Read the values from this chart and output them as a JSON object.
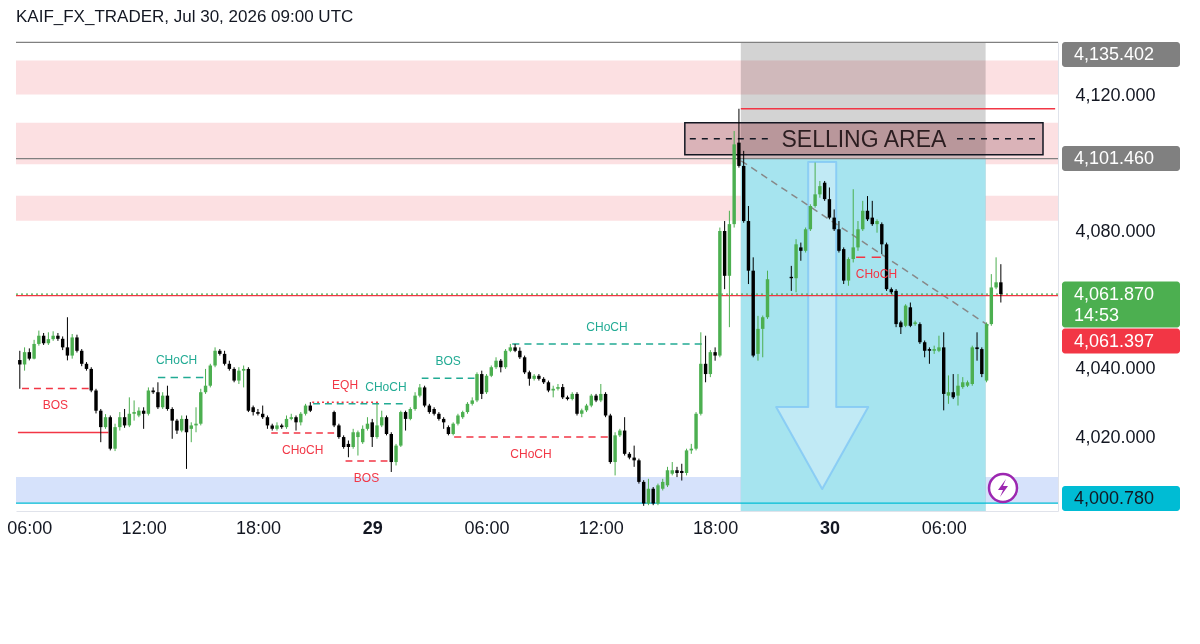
{
  "chart_data": {
    "type": "candlestick",
    "title": "KAIF_FX_TRADER, Jul 30, 2026 09:00 UTC",
    "xlim": [
      "2026-07-28T05:18",
      "2026-07-30T12:00"
    ],
    "ylim": [
      3998.5,
      4135.5
    ],
    "xticks": [
      {
        "value": "2026-07-28T06:00",
        "label": "06:00"
      },
      {
        "value": "2026-07-28T12:00",
        "label": "12:00"
      },
      {
        "value": "2026-07-28T18:00",
        "label": "18:00"
      },
      {
        "value": "2026-07-29",
        "label": "29"
      },
      {
        "value": "2026-07-29T06:00",
        "label": "06:00"
      },
      {
        "value": "2026-07-29T12:00",
        "label": "12:00"
      },
      {
        "value": "2026-07-29T18:00",
        "label": "18:00"
      },
      {
        "value": "2026-07-30",
        "label": "30"
      },
      {
        "value": "2026-07-30T06:00",
        "label": "06:00"
      }
    ],
    "yticks": [
      {
        "value": 4020,
        "label": "4,020.000"
      },
      {
        "value": 4040,
        "label": "4,040.000"
      },
      {
        "value": 4080,
        "label": "4,080.000"
      },
      {
        "value": 4120,
        "label": "4,120.000"
      }
    ],
    "x": [
      "2026-07-28T05:30",
      "2026-07-28T05:45",
      "2026-07-28T06:00",
      "2026-07-28T06:15",
      "2026-07-28T06:30",
      "2026-07-28T06:45",
      "2026-07-28T07:00",
      "2026-07-28T07:15",
      "2026-07-28T07:30",
      "2026-07-28T07:45",
      "2026-07-28T08:00",
      "2026-07-28T08:15",
      "2026-07-28T08:30",
      "2026-07-28T08:45",
      "2026-07-28T09:00",
      "2026-07-28T09:15",
      "2026-07-28T09:30",
      "2026-07-28T09:45",
      "2026-07-28T10:00",
      "2026-07-28T10:15",
      "2026-07-28T10:30",
      "2026-07-28T10:45",
      "2026-07-28T11:00",
      "2026-07-28T11:15",
      "2026-07-28T11:30",
      "2026-07-28T11:45",
      "2026-07-28T12:00",
      "2026-07-28T12:15",
      "2026-07-28T12:30",
      "2026-07-28T12:45",
      "2026-07-28T13:00",
      "2026-07-28T13:15",
      "2026-07-28T13:30",
      "2026-07-28T13:45",
      "2026-07-28T14:00",
      "2026-07-28T14:15",
      "2026-07-28T14:30",
      "2026-07-28T14:45",
      "2026-07-28T15:00",
      "2026-07-28T15:15",
      "2026-07-28T15:30",
      "2026-07-28T15:45",
      "2026-07-28T16:00",
      "2026-07-28T16:15",
      "2026-07-28T16:30",
      "2026-07-28T16:45",
      "2026-07-28T17:00",
      "2026-07-28T17:15",
      "2026-07-28T17:30",
      "2026-07-28T17:45",
      "2026-07-28T18:00",
      "2026-07-28T18:15",
      "2026-07-28T18:30",
      "2026-07-28T18:45",
      "2026-07-28T19:00",
      "2026-07-28T19:15",
      "2026-07-28T19:30",
      "2026-07-28T19:45",
      "2026-07-28T20:00",
      "2026-07-28T20:15",
      "2026-07-28T20:30",
      "2026-07-28T20:45",
      "2026-07-28T22:00",
      "2026-07-28T22:15",
      "2026-07-28T22:30",
      "2026-07-28T22:45",
      "2026-07-28T23:00",
      "2026-07-28T23:15",
      "2026-07-28T23:30",
      "2026-07-28T23:45",
      "2026-07-29T00:00",
      "2026-07-29T00:15",
      "2026-07-29T00:30",
      "2026-07-29T00:45",
      "2026-07-29T01:00",
      "2026-07-29T01:15",
      "2026-07-29T01:30",
      "2026-07-29T01:45",
      "2026-07-29T02:00",
      "2026-07-29T02:15",
      "2026-07-29T02:30",
      "2026-07-29T02:45",
      "2026-07-29T03:00",
      "2026-07-29T03:15",
      "2026-07-29T03:30",
      "2026-07-29T03:45",
      "2026-07-29T04:00",
      "2026-07-29T04:15",
      "2026-07-29T04:30",
      "2026-07-29T04:45",
      "2026-07-29T05:00",
      "2026-07-29T05:15",
      "2026-07-29T05:30",
      "2026-07-29T05:45",
      "2026-07-29T06:00",
      "2026-07-29T06:15",
      "2026-07-29T06:30",
      "2026-07-29T06:45",
      "2026-07-29T07:00",
      "2026-07-29T07:15",
      "2026-07-29T07:30",
      "2026-07-29T07:45",
      "2026-07-29T08:00",
      "2026-07-29T08:15",
      "2026-07-29T08:30",
      "2026-07-29T08:45",
      "2026-07-29T09:00",
      "2026-07-29T09:15",
      "2026-07-29T09:30",
      "2026-07-29T09:45",
      "2026-07-29T10:00",
      "2026-07-29T10:15",
      "2026-07-29T10:30",
      "2026-07-29T10:45",
      "2026-07-29T11:00",
      "2026-07-29T11:15",
      "2026-07-29T11:30",
      "2026-07-29T11:45",
      "2026-07-29T12:00",
      "2026-07-29T12:15",
      "2026-07-29T12:30",
      "2026-07-29T12:45",
      "2026-07-29T13:00",
      "2026-07-29T13:15",
      "2026-07-29T13:30",
      "2026-07-29T13:45",
      "2026-07-29T14:00",
      "2026-07-29T14:15",
      "2026-07-29T14:30",
      "2026-07-29T14:45",
      "2026-07-29T15:00",
      "2026-07-29T15:15",
      "2026-07-29T15:30",
      "2026-07-29T15:45",
      "2026-07-29T16:00",
      "2026-07-29T16:15",
      "2026-07-29T16:30",
      "2026-07-29T16:45",
      "2026-07-29T17:00",
      "2026-07-29T17:15",
      "2026-07-29T17:30",
      "2026-07-29T17:45",
      "2026-07-29T18:00",
      "2026-07-29T18:15",
      "2026-07-29T18:30",
      "2026-07-29T18:45",
      "2026-07-29T19:00",
      "2026-07-29T19:15",
      "2026-07-29T19:30",
      "2026-07-29T19:45",
      "2026-07-29T20:00",
      "2026-07-29T20:15",
      "2026-07-29T20:30",
      "2026-07-29T20:45",
      "2026-07-29T22:00",
      "2026-07-29T22:15",
      "2026-07-29T22:30",
      "2026-07-29T22:45",
      "2026-07-29T23:00",
      "2026-07-29T23:15",
      "2026-07-29T23:30",
      "2026-07-29T23:45",
      "2026-07-30T00:00",
      "2026-07-30T00:15",
      "2026-07-30T00:30",
      "2026-07-30T00:45",
      "2026-07-30T01:00",
      "2026-07-30T01:15",
      "2026-07-30T01:30",
      "2026-07-30T01:45",
      "2026-07-30T02:00",
      "2026-07-30T02:15",
      "2026-07-30T02:30",
      "2026-07-30T02:45",
      "2026-07-30T03:00",
      "2026-07-30T03:15",
      "2026-07-30T03:30",
      "2026-07-30T03:45",
      "2026-07-30T04:00",
      "2026-07-30T04:15",
      "2026-07-30T04:30",
      "2026-07-30T04:45",
      "2026-07-30T05:00",
      "2026-07-30T05:15",
      "2026-07-30T05:30",
      "2026-07-30T05:45",
      "2026-07-30T06:00",
      "2026-07-30T06:15",
      "2026-07-30T06:30",
      "2026-07-30T06:45",
      "2026-07-30T07:00",
      "2026-07-30T07:15",
      "2026-07-30T07:30",
      "2026-07-30T07:45",
      "2026-07-30T08:00",
      "2026-07-30T08:15",
      "2026-07-30T08:30",
      "2026-07-30T08:45",
      "2026-07-30T09:00"
    ],
    "ohlc": [
      [
        4042.6,
        4045.3,
        4034.2,
        4041.3
      ],
      [
        4041.3,
        4046.3,
        4039.5,
        4044.9
      ],
      [
        4044.9,
        4046.0,
        4042.5,
        4043.0
      ],
      [
        4043.0,
        4048.5,
        4042.8,
        4047.3
      ],
      [
        4047.3,
        4051.2,
        4046.8,
        4049.7
      ],
      [
        4049.7,
        4050.5,
        4047.0,
        4047.5
      ],
      [
        4047.5,
        4050.7,
        4047.0,
        4048.7
      ],
      [
        4048.7,
        4051.0,
        4048.2,
        4049.7
      ],
      [
        4049.7,
        4050.5,
        4048.2,
        4048.8
      ],
      [
        4048.8,
        4049.5,
        4045.5,
        4046.3
      ],
      [
        4046.3,
        4055.1,
        4042.5,
        4043.9
      ],
      [
        4043.9,
        4050.2,
        4043.0,
        4049.2
      ],
      [
        4049.2,
        4050.0,
        4044.8,
        4045.3
      ],
      [
        4045.3,
        4045.8,
        4040.8,
        4041.5
      ],
      [
        4041.5,
        4042.0,
        4039.5,
        4040.0
      ],
      [
        4040.0,
        4040.5,
        4033.2,
        4033.7
      ],
      [
        4033.7,
        4034.2,
        4027.0,
        4027.8
      ],
      [
        4027.8,
        4028.3,
        4018.6,
        4023.0
      ],
      [
        4023.0,
        4026.8,
        4022.5,
        4025.9
      ],
      [
        4025.9,
        4026.4,
        4016.2,
        4016.7
      ],
      [
        4016.7,
        4024.0,
        4016.0,
        4023.0
      ],
      [
        4023.0,
        4027.4,
        4022.0,
        4025.9
      ],
      [
        4025.9,
        4028.3,
        4022.8,
        4023.5
      ],
      [
        4023.5,
        4031.7,
        4023.0,
        4026.9
      ],
      [
        4026.9,
        4030.8,
        4024.9,
        4027.4
      ],
      [
        4026.4,
        4028.8,
        4025.9,
        4027.8
      ],
      [
        4027.8,
        4028.8,
        4022.5,
        4026.9
      ],
      [
        4026.9,
        4034.6,
        4026.4,
        4033.7
      ],
      [
        4033.7,
        4034.6,
        4032.7,
        4033.2
      ],
      [
        4033.2,
        4036.1,
        4028.3,
        4028.8
      ],
      [
        4028.8,
        4033.2,
        4028.3,
        4032.2
      ],
      [
        4032.2,
        4035.1,
        4027.8,
        4028.3
      ],
      [
        4028.3,
        4028.8,
        4019.6,
        4024.9
      ],
      [
        4024.9,
        4025.4,
        4021.0,
        4022.0
      ],
      [
        4022.0,
        4026.4,
        4021.5,
        4025.4
      ],
      [
        4025.4,
        4026.4,
        4010.8,
        4021.5
      ],
      [
        4022.5,
        4024.4,
        4018.6,
        4023.5
      ],
      [
        4023.5,
        4028.8,
        4021.5,
        4024.0
      ],
      [
        4024.0,
        4034.2,
        4023.5,
        4033.2
      ],
      [
        4033.2,
        4040.0,
        4032.7,
        4035.1
      ],
      [
        4035.1,
        4041.5,
        4034.6,
        4041.0
      ],
      [
        4041.0,
        4046.3,
        4040.5,
        4045.3
      ],
      [
        4045.3,
        4045.8,
        4043.9,
        4044.4
      ],
      [
        4044.4,
        4045.3,
        4041.0,
        4041.5
      ],
      [
        4041.5,
        4042.4,
        4039.5,
        4040.0
      ],
      [
        4040.0,
        4040.5,
        4036.1,
        4036.6
      ],
      [
        4036.6,
        4040.5,
        4035.6,
        4039.5
      ],
      [
        4039.5,
        4041.0,
        4034.6,
        4040.0
      ],
      [
        4040.0,
        4040.5,
        4027.4,
        4027.8
      ],
      [
        4028.8,
        4029.3,
        4026.4,
        4027.4
      ],
      [
        4027.4,
        4028.3,
        4026.4,
        4026.9
      ],
      [
        4026.9,
        4029.3,
        4025.4,
        4025.9
      ],
      [
        4025.9,
        4026.4,
        4022.5,
        4023.5
      ],
      [
        4023.5,
        4024.0,
        4022.0,
        4022.5
      ],
      [
        4022.5,
        4024.4,
        4022.0,
        4023.5
      ],
      [
        4023.5,
        4024.0,
        4022.5,
        4023.0
      ],
      [
        4023.0,
        4026.4,
        4022.5,
        4025.4
      ],
      [
        4025.4,
        4026.9,
        4025.0,
        4025.9
      ],
      [
        4025.9,
        4026.4,
        4022.0,
        4024.4
      ],
      [
        4024.4,
        4027.4,
        4023.5,
        4026.9
      ],
      [
        4026.9,
        4029.8,
        4026.4,
        4029.3
      ],
      [
        4029.3,
        4030.3,
        4027.4,
        4027.8
      ],
      [
        4027.4,
        4027.8,
        4023.0,
        4023.5
      ],
      [
        4023.5,
        4024.0,
        4019.6,
        4020.1
      ],
      [
        4020.1,
        4020.6,
        4016.7,
        4017.2
      ],
      [
        4018.1,
        4019.1,
        4014.2,
        4017.2
      ],
      [
        4017.2,
        4022.5,
        4016.7,
        4021.5
      ],
      [
        4020.1,
        4022.0,
        4014.7,
        4021.5
      ],
      [
        4018.6,
        4023.5,
        4018.1,
        4022.5
      ],
      [
        4022.5,
        4025.9,
        4022.0,
        4024.0
      ],
      [
        4024.4,
        4025.4,
        4017.2,
        4020.1
      ],
      [
        4020.1,
        4029.8,
        4019.6,
        4023.5
      ],
      [
        4023.5,
        4027.8,
        4023.0,
        4025.9
      ],
      [
        4025.9,
        4026.4,
        4020.6,
        4021.0
      ],
      [
        4021.0,
        4021.5,
        4009.9,
        4012.8
      ],
      [
        4012.8,
        4018.1,
        4011.8,
        4017.6
      ],
      [
        4017.6,
        4027.8,
        4017.2,
        4027.4
      ],
      [
        4027.4,
        4027.8,
        4022.0,
        4025.4
      ],
      [
        4025.4,
        4028.8,
        4025.0,
        4028.3
      ],
      [
        4028.3,
        4033.2,
        4027.8,
        4032.2
      ],
      [
        4032.2,
        4035.6,
        4031.7,
        4034.6
      ],
      [
        4034.6,
        4035.1,
        4028.8,
        4029.3
      ],
      [
        4029.3,
        4029.8,
        4026.9,
        4027.4
      ],
      [
        4028.3,
        4028.8,
        4026.4,
        4026.9
      ],
      [
        4026.9,
        4027.4,
        4024.9,
        4025.4
      ],
      [
        4025.4,
        4025.9,
        4022.5,
        4024.4
      ],
      [
        4023.0,
        4023.5,
        4020.6,
        4021.0
      ],
      [
        4021.0,
        4024.4,
        4020.6,
        4024.0
      ],
      [
        4024.0,
        4026.9,
        4023.5,
        4026.4
      ],
      [
        4025.9,
        4027.8,
        4025.4,
        4027.4
      ],
      [
        4027.4,
        4030.3,
        4026.9,
        4029.8
      ],
      [
        4029.8,
        4031.7,
        4029.3,
        4030.8
      ],
      [
        4030.8,
        4039.0,
        4030.3,
        4038.5
      ],
      [
        4038.5,
        4039.5,
        4031.2,
        4032.7
      ],
      [
        4033.2,
        4038.5,
        4032.7,
        4038.0
      ],
      [
        4038.0,
        4041.0,
        4037.6,
        4040.5
      ],
      [
        4040.5,
        4043.4,
        4040.0,
        4042.4
      ],
      [
        4042.4,
        4042.9,
        4039.0,
        4040.5
      ],
      [
        4040.5,
        4045.8,
        4040.0,
        4045.3
      ],
      [
        4045.3,
        4047.3,
        4044.9,
        4046.3
      ],
      [
        4046.3,
        4047.3,
        4044.9,
        4045.3
      ],
      [
        4045.3,
        4046.3,
        4042.9,
        4043.4
      ],
      [
        4043.4,
        4043.9,
        4038.5,
        4039.0
      ],
      [
        4039.0,
        4039.5,
        4035.1,
        4037.1
      ],
      [
        4037.1,
        4038.5,
        4036.6,
        4038.0
      ],
      [
        4038.0,
        4038.5,
        4036.6,
        4037.1
      ],
      [
        4037.1,
        4037.6,
        4035.6,
        4036.1
      ],
      [
        4036.1,
        4036.6,
        4033.2,
        4033.7
      ],
      [
        4033.7,
        4035.1,
        4031.7,
        4034.2
      ],
      [
        4034.2,
        4035.6,
        4033.7,
        4034.7
      ],
      [
        4034.7,
        4035.6,
        4031.2,
        4031.7
      ],
      [
        4031.7,
        4032.2,
        4030.8,
        4031.2
      ],
      [
        4031.2,
        4033.2,
        4030.8,
        4032.7
      ],
      [
        4032.7,
        4033.2,
        4026.4,
        4026.9
      ],
      [
        4026.9,
        4028.4,
        4025.9,
        4027.9
      ],
      [
        4027.9,
        4029.8,
        4027.4,
        4029.3
      ],
      [
        4029.3,
        4032.7,
        4028.8,
        4032.2
      ],
      [
        4032.2,
        4032.7,
        4030.3,
        4030.8
      ],
      [
        4030.8,
        4035.6,
        4030.3,
        4032.7
      ],
      [
        4032.7,
        4033.2,
        4025.9,
        4026.4
      ],
      [
        4026.4,
        4026.9,
        4012.3,
        4012.8
      ],
      [
        4012.8,
        4021.5,
        4008.9,
        4020.6
      ],
      [
        4020.6,
        4022.5,
        4020.1,
        4022.0
      ],
      [
        4022.0,
        4025.9,
        4014.7,
        4015.2
      ],
      [
        4015.2,
        4015.7,
        4013.6,
        4014.1
      ],
      [
        4014.1,
        4017.6,
        4011.4,
        4013.3
      ],
      [
        4013.3,
        4013.8,
        4006.5,
        4007.0
      ],
      [
        4007.0,
        4007.5,
        4000.0,
        4000.7
      ],
      [
        4000.7,
        4007.9,
        4000.2,
        4005.0
      ],
      [
        4005.0,
        4005.5,
        4000.2,
        4000.7
      ],
      [
        4000.7,
        4006.5,
        4000.2,
        4006.0
      ],
      [
        4005.0,
        4007.9,
        4004.5,
        4007.0
      ],
      [
        4006.0,
        4011.4,
        4005.5,
        4010.4
      ],
      [
        4009.4,
        4012.8,
        4008.9,
        4010.4
      ],
      [
        4010.4,
        4011.4,
        4008.4,
        4009.6
      ],
      [
        4010.2,
        4012.3,
        4007.4,
        4009.6
      ],
      [
        4009.6,
        4016.7,
        4008.9,
        4016.2
      ],
      [
        4016.2,
        4018.1,
        4015.2,
        4016.7
      ],
      [
        4016.7,
        4027.4,
        4016.2,
        4026.9
      ],
      [
        4026.9,
        4050.7,
        4026.4,
        4041.5
      ],
      [
        4041.5,
        4049.7,
        4036.1,
        4038.5
      ],
      [
        4038.5,
        4045.5,
        4037.6,
        4044.9
      ],
      [
        4044.9,
        4046.3,
        4042.4,
        4043.9
      ],
      [
        4043.9,
        4081.3,
        4043.4,
        4080.3
      ],
      [
        4080.3,
        4083.2,
        4063.3,
        4067.2
      ],
      [
        4067.2,
        4086.2,
        4052.2,
        4082.3
      ],
      [
        4082.3,
        4109.5,
        4081.3,
        4105.6
      ],
      [
        4106.1,
        4116.0,
        4098.8,
        4099.3
      ],
      [
        4099.3,
        4103.7,
        4082.7,
        4083.2
      ],
      [
        4083.2,
        4087.6,
        4064.8,
        4068.7
      ],
      [
        4068.7,
        4072.6,
        4043.4,
        4043.9
      ],
      [
        4044.4,
        4055.5,
        4042.4,
        4051.7
      ],
      [
        4051.7,
        4055.6,
        4043.4,
        4055.1
      ],
      [
        4055.1,
        4068.7,
        4054.6,
        4066.2
      ],
      [
        4066.9,
        4070.1,
        4062.8,
        4066.5
      ],
      [
        4066.5,
        4077.9,
        4062.4,
        4076.4
      ],
      [
        4075.5,
        4076.9,
        4071.6,
        4074.5
      ],
      [
        4074.5,
        4081.3,
        4074.0,
        4080.8
      ],
      [
        4080.8,
        4088.1,
        4080.3,
        4087.6
      ],
      [
        4087.6,
        4100.3,
        4087.1,
        4091.0
      ],
      [
        4091.0,
        4094.9,
        4090.0,
        4093.4
      ],
      [
        4094.4,
        4094.9,
        4089.1,
        4089.6
      ],
      [
        4089.6,
        4093.0,
        4083.7,
        4084.2
      ],
      [
        4084.2,
        4086.6,
        4080.3,
        4080.8
      ],
      [
        4080.8,
        4083.2,
        4074.0,
        4074.5
      ],
      [
        4075.0,
        4075.5,
        4064.8,
        4065.8
      ],
      [
        4065.8,
        4072.6,
        4064.3,
        4072.1
      ],
      [
        4072.1,
        4092.5,
        4071.1,
        4075.5
      ],
      [
        4075.5,
        4083.2,
        4074.5,
        4080.8
      ],
      [
        4080.8,
        4089.1,
        4080.3,
        4086.2
      ],
      [
        4086.2,
        4090.5,
        4083.2,
        4083.7
      ],
      [
        4084.2,
        4089.1,
        4081.8,
        4082.3
      ],
      [
        4082.3,
        4083.7,
        4079.8,
        4083.2
      ],
      [
        4082.3,
        4082.8,
        4073.5,
        4076.4
      ],
      [
        4076.4,
        4076.9,
        4062.8,
        4063.3
      ],
      [
        4063.3,
        4063.8,
        4061.9,
        4062.4
      ],
      [
        4062.8,
        4063.3,
        4052.2,
        4053.1
      ],
      [
        4053.6,
        4054.1,
        4050.2,
        4052.2
      ],
      [
        4052.6,
        4058.9,
        4052.2,
        4058.5
      ],
      [
        4058.0,
        4059.4,
        4052.2,
        4052.6
      ],
      [
        4053.1,
        4054.1,
        4052.6,
        4053.6
      ],
      [
        4053.1,
        4053.6,
        4047.3,
        4047.8
      ],
      [
        4047.8,
        4048.3,
        4043.4,
        4045.3
      ],
      [
        4045.8,
        4046.3,
        4041.5,
        4045.3
      ],
      [
        4045.3,
        4046.8,
        4044.4,
        4045.8
      ],
      [
        4045.3,
        4049.7,
        4044.9,
        4046.3
      ],
      [
        4046.3,
        4050.7,
        4027.9,
        4032.7
      ],
      [
        4032.2,
        4038.1,
        4029.8,
        4033.2
      ],
      [
        4033.2,
        4038.5,
        4031.2,
        4031.7
      ],
      [
        4032.2,
        4038.5,
        4029.3,
        4035.1
      ],
      [
        4034.7,
        4037.6,
        4034.2,
        4036.1
      ],
      [
        4035.1,
        4036.6,
        4034.7,
        4036.1
      ],
      [
        4035.6,
        4046.8,
        4035.1,
        4046.3
      ],
      [
        4046.3,
        4050.7,
        4042.4,
        4045.8
      ],
      [
        4045.8,
        4046.3,
        4037.6,
        4038.5
      ],
      [
        4036.6,
        4053.6,
        4036.1,
        4053.1
      ],
      [
        4053.1,
        4067.7,
        4052.6,
        4063.8
      ],
      [
        4063.8,
        4072.6,
        4063.3,
        4065.3
      ],
      [
        4065.3,
        4070.6,
        4059.4,
        4061.87
      ]
    ],
    "colors": [
      "#000000",
      "#4caf50",
      "#000000",
      "#4caf50",
      "#4caf50",
      "#000000",
      "#4caf50",
      "#4caf50",
      "#000000",
      "#000000",
      "#000000",
      "#4caf50",
      "#000000",
      "#000000",
      "#000000",
      "#000000",
      "#000000",
      "#000000",
      "#4caf50",
      "#000000",
      "#4caf50",
      "#4caf50",
      "#000000",
      "#4caf50",
      "#4caf50",
      "#4caf50",
      "#000000",
      "#4caf50",
      "#000000",
      "#000000",
      "#4caf50",
      "#000000",
      "#000000",
      "#000000",
      "#4caf50",
      "#000000",
      "#4caf50",
      "#4caf50",
      "#4caf50",
      "#4caf50",
      "#4caf50",
      "#4caf50",
      "#000000",
      "#000000",
      "#000000",
      "#000000",
      "#4caf50",
      "#4caf50",
      "#000000",
      "#000000",
      "#000000",
      "#000000",
      "#000000",
      "#000000",
      "#4caf50",
      "#000000",
      "#4caf50",
      "#4caf50",
      "#000000",
      "#4caf50",
      "#4caf50",
      "#000000",
      "#000000",
      "#000000",
      "#000000",
      "#000000",
      "#4caf50",
      "#4caf50",
      "#4caf50",
      "#4caf50",
      "#000000",
      "#4caf50",
      "#4caf50",
      "#000000",
      "#000000",
      "#4caf50",
      "#4caf50",
      "#000000",
      "#4caf50",
      "#4caf50",
      "#4caf50",
      "#000000",
      "#000000",
      "#000000",
      "#000000",
      "#000000",
      "#000000",
      "#4caf50",
      "#4caf50",
      "#4caf50",
      "#4caf50",
      "#4caf50",
      "#4caf50",
      "#000000",
      "#4caf50",
      "#4caf50",
      "#4caf50",
      "#000000",
      "#4caf50",
      "#4caf50",
      "#000000",
      "#000000",
      "#000000",
      "#000000",
      "#4caf50",
      "#000000",
      "#000000",
      "#000000",
      "#4caf50",
      "#4caf50",
      "#000000",
      "#000000",
      "#4caf50",
      "#000000",
      "#4caf50",
      "#4caf50",
      "#4caf50",
      "#000000",
      "#4caf50",
      "#000000",
      "#000000",
      "#4caf50",
      "#4caf50",
      "#000000",
      "#000000",
      "#000000",
      "#000000",
      "#000000",
      "#4caf50",
      "#000000",
      "#4caf50",
      "#4caf50",
      "#4caf50",
      "#4caf50",
      "#000000",
      "#000000",
      "#4caf50",
      "#4caf50",
      "#4caf50",
      "#4caf50",
      "#000000",
      "#4caf50",
      "#000000",
      "#4caf50",
      "#000000",
      "#4caf50",
      "#4caf50",
      "#000000",
      "#000000",
      "#000000",
      "#000000",
      "#4caf50",
      "#4caf50",
      "#4caf50",
      "#000000",
      "#4caf50",
      "#000000",
      "#4caf50",
      "#4caf50",
      "#4caf50",
      "#4caf50",
      "#000000",
      "#000000",
      "#000000",
      "#000000",
      "#000000",
      "#4caf50",
      "#4caf50",
      "#4caf50",
      "#4caf50",
      "#000000",
      "#000000",
      "#4caf50",
      "#000000",
      "#000000",
      "#000000",
      "#000000",
      "#000000",
      "#4caf50",
      "#000000",
      "#4caf50",
      "#000000",
      "#000000",
      "#000000",
      "#4caf50",
      "#4caf50",
      "#000000",
      "#4caf50",
      "#000000",
      "#4caf50",
      "#4caf50",
      "#4caf50",
      "#4caf50",
      "#000000",
      "#000000",
      "#4caf50",
      "#4caf50",
      "#4caf50",
      "#000000"
    ],
    "series": [
      {
        "type": "area",
        "color": "#d3d3d3",
        "x": [
          "2026-07-29T19:21",
          "2026-07-30T08:12"
        ],
        "values": [
          4135.4,
          4135.4
        ]
      },
      {
        "type": "area",
        "color": "#a6e4ef",
        "x": [
          "2026-07-29T19:21",
          "2026-07-30T08:12"
        ],
        "values": [
          4101.5,
          4101.5
        ]
      },
      {
        "type": "line",
        "name": "BOS",
        "color": "#f23645",
        "line_style": "dashed",
        "x": [
          "2026-07-28T05:37",
          "2026-07-28T09:07"
        ],
        "values": [
          4034.3,
          4034.3
        ]
      },
      {
        "type": "line",
        "color": "#f23645",
        "line_style": "solid",
        "x": [
          "2026-07-28T05:24",
          "2026-07-28T10:09"
        ],
        "values": [
          4021.4,
          4021.4
        ]
      },
      {
        "type": "line",
        "name": "CHoCH",
        "color": "#22ab94",
        "line_style": "dashed",
        "x": [
          "2026-07-28T12:45",
          "2026-07-28T15:08"
        ],
        "values": [
          4037.5,
          4037.5
        ]
      },
      {
        "type": "line",
        "name": "CHoCH",
        "color": "#f23645",
        "line_style": "dashed",
        "x": [
          "2026-07-28T18:42",
          "2026-07-28T22:00"
        ],
        "values": [
          4021.3,
          4021.3
        ]
      },
      {
        "type": "line",
        "name": "EQH",
        "color": "#f23645",
        "line_style": "dotted",
        "x": [
          "2026-07-28T20:51",
          "2026-07-29T00:18"
        ],
        "values": [
          4030.3,
          4030.3
        ]
      },
      {
        "type": "line",
        "name": "CHoCH",
        "color": "#22ab94",
        "line_style": "dashed",
        "x": [
          "2026-07-28T20:54",
          "2026-07-29T01:36"
        ],
        "values": [
          4029.8,
          4029.8
        ]
      },
      {
        "type": "line",
        "name": "BOS",
        "color": "#f23645",
        "line_style": "dashed",
        "x": [
          "2026-07-28T22:36",
          "2026-07-29T00:48"
        ],
        "values": [
          4013.1,
          4013.1
        ]
      },
      {
        "type": "line",
        "name": "BOS",
        "color": "#22ab94",
        "line_style": "dashed",
        "x": [
          "2026-07-29T02:36",
          "2026-07-29T05:22"
        ],
        "values": [
          4037.3,
          4037.3
        ]
      },
      {
        "type": "line",
        "name": "CHoCH",
        "color": "#f23645",
        "line_style": "dashed",
        "x": [
          "2026-07-29T04:18",
          "2026-07-29T12:22"
        ],
        "values": [
          4020.1,
          4020.1
        ]
      },
      {
        "type": "line",
        "name": "CHoCH",
        "color": "#22ab94",
        "line_style": "dashed",
        "x": [
          "2026-07-29T07:21",
          "2026-07-29T17:18"
        ],
        "values": [
          4047.3,
          4047.3
        ]
      },
      {
        "type": "line",
        "name": "CHoCH",
        "color": "#f23645",
        "line_style": "dashed",
        "x": [
          "2026-07-30T01:24",
          "2026-07-30T02:42"
        ],
        "values": [
          4072.6,
          4072.6
        ]
      },
      {
        "type": "line",
        "color": "#f23645",
        "line_style": "solid",
        "x": [
          "2026-07-29T19:21",
          "2026-07-30T11:51"
        ],
        "values": [
          4116.0,
          4116.0
        ]
      },
      {
        "type": "line",
        "color": "#888888",
        "line_style": "dashed",
        "x": [
          "2026-07-29T19:22",
          "2026-07-30T08:21"
        ],
        "values": [
          4100.8,
          4052.7
        ]
      }
    ],
    "bands": [
      {
        "axis": "y",
        "from": 4120.2,
        "to": 4130.1,
        "color": "#fce0e2"
      },
      {
        "axis": "y",
        "from": 4099.8,
        "to": 4111.9,
        "color": "#fce0e2",
        "label": "SELLING AREA"
      },
      {
        "axis": "y",
        "from": 4083.3,
        "to": 4090.6,
        "color": "#fce0e2"
      },
      {
        "axis": "y",
        "from": 4000.78,
        "to": 4008.4,
        "color": "#d6e2fb"
      }
    ],
    "ref_lines": [
      {
        "axis": "y",
        "value": 4135.402,
        "label": "4,135.402",
        "color": "#808080",
        "line_style": "solid"
      },
      {
        "axis": "y",
        "value": 4101.46,
        "label": "4,101.460",
        "color": "#808080",
        "line_style": "solid"
      },
      {
        "axis": "y",
        "value": 4061.87,
        "label": "4,061.870\n14:53",
        "color": "#4caf50",
        "line_style": "dotted"
      },
      {
        "axis": "y",
        "value": 4061.397,
        "label": "4,061.397",
        "color": "#f23645",
        "line_style": "solid"
      },
      {
        "axis": "y",
        "value": 4000.78,
        "label": "4,000.780",
        "color": "#00bcd4",
        "line_style": "solid"
      }
    ]
  }
}
